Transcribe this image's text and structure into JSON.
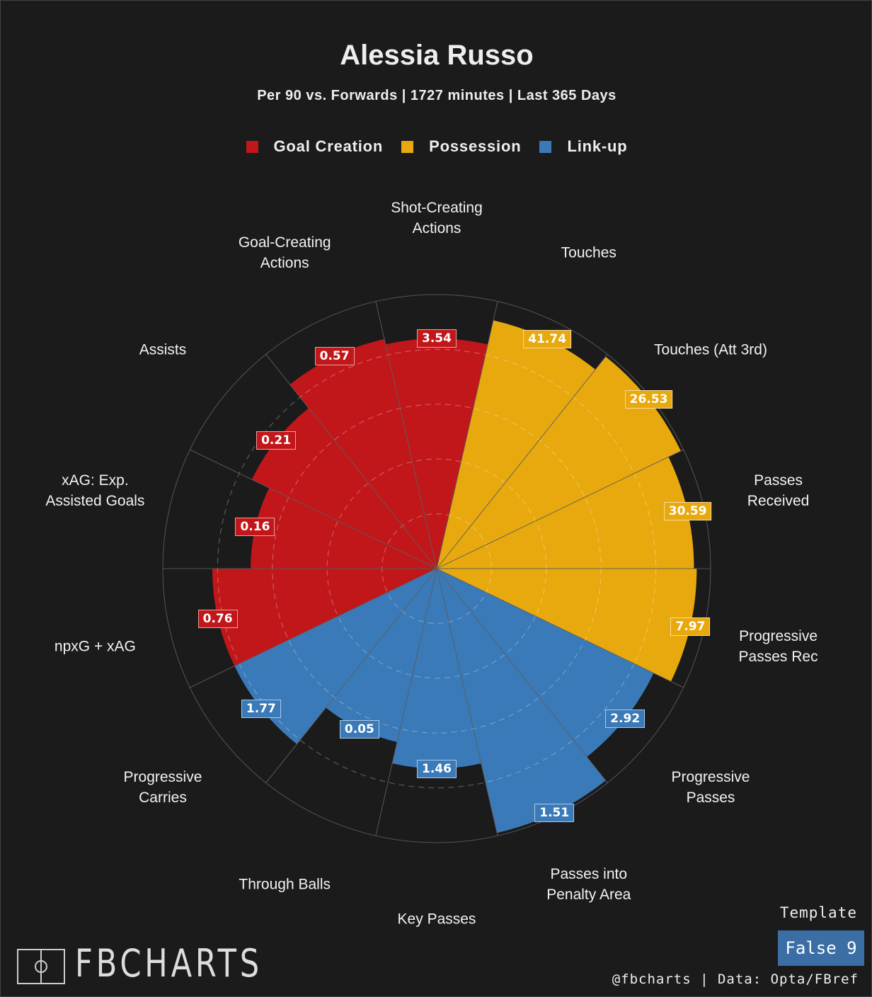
{
  "chart_data": {
    "type": "pizza",
    "title": "Alessia Russo",
    "subtitle": "Per 90 vs. Forwards | 1727 minutes | Last 365 Days",
    "rlim": [
      0,
      100
    ],
    "rticks": [
      20,
      40,
      60,
      80
    ],
    "grid": true,
    "series": [
      {
        "name": "Goal Creation",
        "color": "#c1171a",
        "categories": [
          "npxG + xAG",
          "xAG: Exp. Assisted Goals",
          "Assists",
          "Goal-Creating Actions",
          "Shot-Creating Actions"
        ],
        "values": [
          0.76,
          0.16,
          0.21,
          0.57,
          3.54
        ],
        "percentiles": [
          82,
          68,
          75,
          86,
          84
        ]
      },
      {
        "name": "Possession",
        "color": "#e8a90e",
        "categories": [
          "Touches",
          "Touches (Att 3rd)",
          "Passes Received",
          "Progressive Passes Rec"
        ],
        "values": [
          41.74,
          26.53,
          30.59,
          7.97
        ],
        "percentiles": [
          93,
          99,
          94,
          95
        ]
      },
      {
        "name": "Link-up",
        "color": "#3a7ab8",
        "categories": [
          "Progressive Passes",
          "Passes into Penalty Area",
          "Key Passes",
          "Through Balls",
          "Progressive Carries"
        ],
        "values": [
          2.92,
          1.51,
          1.46,
          0.05,
          1.77
        ],
        "percentiles": [
          88,
          99,
          73,
          65,
          82
        ]
      }
    ],
    "logo": "FBCHARTS",
    "template_label": "Template",
    "template": "False 9",
    "credit": "@fbcharts | Data: Opta/FBref"
  }
}
